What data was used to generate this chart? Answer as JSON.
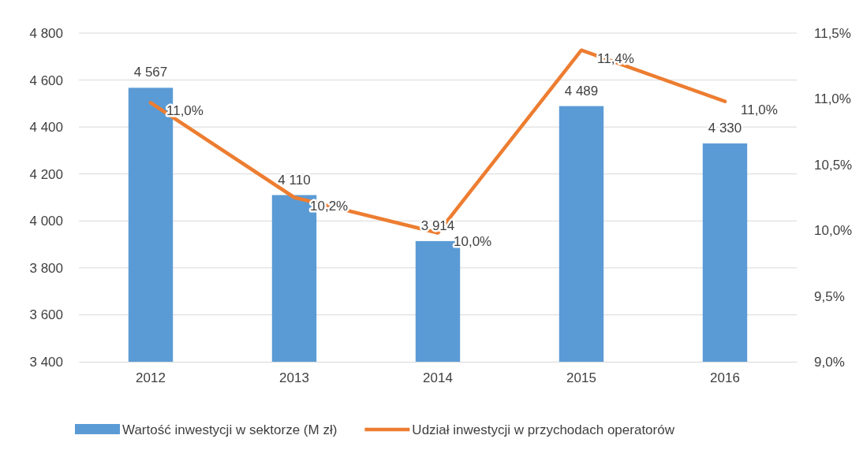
{
  "chart_data": {
    "type": "bar",
    "categories": [
      "2012",
      "2013",
      "2014",
      "2015",
      "2016"
    ],
    "series": [
      {
        "name": "Wartość inwestycji w sektorze (M zł)",
        "color": "#5b9bd5",
        "values": [
          4567,
          4110,
          3914,
          4489,
          4330
        ],
        "value_labels": [
          "4 567",
          "4 110",
          "3 914",
          "4 489",
          "4 330"
        ]
      },
      {
        "name": "Udział inwestycji w przychodach operatorów",
        "type": "line",
        "axis": "y2",
        "color": "#ed7d31",
        "values": [
          10.97,
          10.25,
          9.98,
          11.37,
          10.98
        ],
        "value_labels": [
          "11,0%",
          "10,2%",
          "10,0%",
          "11,4%",
          "11,0%"
        ]
      }
    ],
    "ylim": [
      3400,
      4800
    ],
    "yticks": [
      {
        "value": 3400,
        "label": "3 400"
      },
      {
        "value": 3600,
        "label": "3 600"
      },
      {
        "value": 3800,
        "label": "3 800"
      },
      {
        "value": 4000,
        "label": "4 000"
      },
      {
        "value": 4200,
        "label": "4 200"
      },
      {
        "value": 4400,
        "label": "4 400"
      },
      {
        "value": 4600,
        "label": "4 600"
      },
      {
        "value": 4800,
        "label": "4 800"
      }
    ],
    "y2lim": [
      9,
      11.5
    ],
    "y2ticks": [
      {
        "value": 9,
        "label": "9,0%"
      },
      {
        "value": 9.5,
        "label": "9,5%"
      },
      {
        "value": 10,
        "label": "10,0%"
      },
      {
        "value": 10.5,
        "label": "10,5%"
      },
      {
        "value": 11,
        "label": "11,0%"
      },
      {
        "value": 11.5,
        "label": "11,5%"
      }
    ],
    "grid": "y",
    "legend": "bottom",
    "marker": "none",
    "line_style": "solid"
  }
}
